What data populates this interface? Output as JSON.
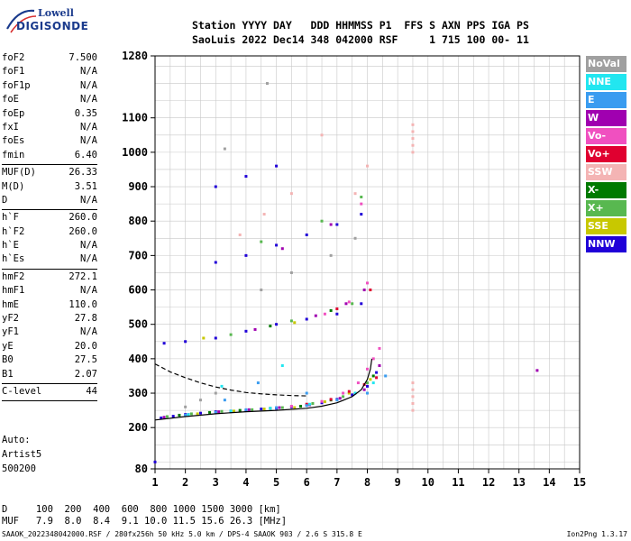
{
  "logo": {
    "line1": "Lowell",
    "line2": "DIGISONDE"
  },
  "header": {
    "line1": "Station YYYY DAY   DDD HHMMSS P1  FFS S AXN PPS IGA PS",
    "line2": "SaoLuis 2022 Dec14 348 042000 RSF     1 715 100 00- 11"
  },
  "params_groups": [
    [
      {
        "k": "foF2",
        "v": "7.500"
      },
      {
        "k": "foF1",
        "v": "N/A"
      },
      {
        "k": "foF1p",
        "v": "N/A"
      },
      {
        "k": "foE",
        "v": "N/A"
      },
      {
        "k": "foEp",
        "v": "0.35"
      },
      {
        "k": "fxI",
        "v": "N/A"
      },
      {
        "k": "foEs",
        "v": "N/A"
      },
      {
        "k": "fmin",
        "v": "6.40"
      }
    ],
    [
      {
        "k": "MUF(D)",
        "v": "26.33"
      },
      {
        "k": "M(D)",
        "v": "3.51"
      },
      {
        "k": "D",
        "v": "N/A"
      }
    ],
    [
      {
        "k": "h`F",
        "v": "260.0"
      },
      {
        "k": "h`F2",
        "v": "260.0"
      },
      {
        "k": "h`E",
        "v": "N/A"
      },
      {
        "k": "h`Es",
        "v": "N/A"
      }
    ],
    [
      {
        "k": "hmF2",
        "v": "272.1"
      },
      {
        "k": "hmF1",
        "v": "N/A"
      },
      {
        "k": "hmE",
        "v": "110.0"
      },
      {
        "k": "yF2",
        "v": "27.8"
      },
      {
        "k": "yF1",
        "v": "N/A"
      },
      {
        "k": "yE",
        "v": "20.0"
      },
      {
        "k": "B0",
        "v": "27.5"
      },
      {
        "k": "B1",
        "v": "2.07"
      }
    ],
    [
      {
        "k": "C-level",
        "v": "44"
      }
    ]
  ],
  "auto": {
    "line1": "Auto:",
    "line2": "Artist5",
    "line3": "500200"
  },
  "legend": [
    {
      "label": "NoVal",
      "color": "#a0a0a0"
    },
    {
      "label": "NNE",
      "color": "#22e6f0"
    },
    {
      "label": "E",
      "color": "#3a9cf0"
    },
    {
      "label": "W",
      "color": "#a000b0"
    },
    {
      "label": "Vo-",
      "color": "#f050c0"
    },
    {
      "label": "Vo+",
      "color": "#e00030"
    },
    {
      "label": "SSW",
      "color": "#f4b4b4"
    },
    {
      "label": "X-",
      "color": "#007a00"
    },
    {
      "label": "X+",
      "color": "#58b850"
    },
    {
      "label": "SSE",
      "color": "#c8c800"
    },
    {
      "label": "NNW",
      "color": "#2000d8"
    }
  ],
  "muf_table": {
    "line1": "D     100  200  400  600  800 1000 1500 3000 [km]",
    "line2": "MUF   7.9  8.0  8.4  9.1 10.0 11.5 15.6 26.3 [MHz]"
  },
  "footer": {
    "left": "SAAOK_2022348042000.RSF / 280fx256h 50 kHz 5.0 km / DPS-4 SAAOK 903 / 2.6 S 315.8 E",
    "right": "Ion2Png 1.3.17"
  },
  "chart_data": {
    "type": "scatter",
    "xlim": [
      1,
      15
    ],
    "ylim": [
      80,
      1280
    ],
    "x_ticks": [
      1,
      2,
      3,
      4,
      5,
      6,
      7,
      8,
      9,
      10,
      11,
      12,
      13,
      14,
      15
    ],
    "y_ticks": [
      80,
      200,
      300,
      400,
      500,
      600,
      700,
      800,
      900,
      1000,
      1100,
      1280
    ],
    "grid": true,
    "series": [
      {
        "name": "NNW",
        "color": "#2000d8",
        "x": [
          1.2,
          1.6,
          2.0,
          2.5,
          3.0,
          3.5,
          4.0,
          4.5,
          5.0,
          5.5,
          6.0,
          6.5,
          7.0,
          7.5,
          8.0,
          8.3,
          1.3,
          2.0,
          3.0,
          4.0,
          5.0,
          6.0,
          7.0,
          7.8,
          3.0,
          4.0,
          5.0,
          6.0,
          7.0,
          7.8,
          3.0,
          4.0,
          5.0,
          1.0
        ],
        "y": [
          228,
          233,
          238,
          242,
          246,
          248,
          250,
          254,
          256,
          260,
          265,
          272,
          282,
          295,
          320,
          360,
          445,
          450,
          460,
          480,
          500,
          515,
          530,
          560,
          680,
          700,
          730,
          760,
          790,
          820,
          900,
          930,
          960,
          100
        ]
      },
      {
        "name": "X+",
        "color": "#58b850",
        "x": [
          1.4,
          2.2,
          3.2,
          4.2,
          5.2,
          6.2,
          7.2,
          8.0,
          3.5,
          5.5,
          7.5,
          4.5,
          6.5,
          7.8
        ],
        "y": [
          232,
          240,
          247,
          252,
          258,
          270,
          290,
          330,
          470,
          510,
          560,
          740,
          800,
          870
        ]
      },
      {
        "name": "X-",
        "color": "#007a00",
        "x": [
          1.8,
          2.8,
          3.8,
          4.8,
          5.8,
          6.8,
          7.6,
          8.2,
          4.8,
          6.8
        ],
        "y": [
          236,
          244,
          250,
          256,
          262,
          280,
          300,
          350,
          495,
          540
        ]
      },
      {
        "name": "SSE",
        "color": "#c8c800",
        "x": [
          2.4,
          3.6,
          4.6,
          5.6,
          6.6,
          7.4,
          8.1,
          2.6,
          5.6
        ],
        "y": [
          240,
          248,
          254,
          258,
          275,
          300,
          340,
          460,
          505
        ]
      },
      {
        "name": "W",
        "color": "#a000b0",
        "x": [
          1.3,
          2.1,
          3.1,
          4.1,
          5.1,
          6.1,
          7.1,
          7.9,
          8.4,
          4.3,
          6.3,
          7.3,
          7.9,
          5.2,
          6.8,
          13.6
        ],
        "y": [
          230,
          238,
          246,
          252,
          258,
          266,
          285,
          310,
          380,
          485,
          525,
          560,
          600,
          720,
          790,
          366
        ]
      },
      {
        "name": "Vo-",
        "color": "#f050c0",
        "x": [
          5.5,
          6.5,
          7.2,
          7.7,
          8.0,
          8.2,
          8.4,
          6.6,
          7.4,
          8.0,
          7.8
        ],
        "y": [
          262,
          276,
          300,
          330,
          370,
          400,
          430,
          530,
          565,
          620,
          850
        ]
      },
      {
        "name": "Vo+",
        "color": "#e00030",
        "x": [
          6.0,
          6.8,
          7.4,
          7.9,
          8.3,
          7.0,
          8.1
        ],
        "y": [
          268,
          282,
          305,
          325,
          345,
          545,
          600
        ]
      },
      {
        "name": "E",
        "color": "#3a9cf0",
        "x": [
          2.0,
          3.0,
          4.0,
          5.0,
          6.0,
          7.0,
          8.0,
          8.6,
          3.3,
          4.4,
          6.0
        ],
        "y": [
          236,
          244,
          252,
          258,
          264,
          280,
          300,
          350,
          280,
          330,
          300
        ]
      },
      {
        "name": "NNE",
        "color": "#22e6f0",
        "x": [
          2.1,
          3.5,
          4.8,
          6.1,
          7.6,
          8.2,
          3.2,
          5.2
        ],
        "y": [
          238,
          248,
          256,
          268,
          300,
          330,
          320,
          380
        ]
      },
      {
        "name": "SSW",
        "color": "#f4b4b4",
        "x": [
          9.5,
          9.5,
          9.5,
          9.5,
          9.5,
          9.5,
          9.5,
          9.5,
          9.5,
          9.5,
          3.8,
          4.6,
          5.5,
          6.5,
          7.6,
          8.0
        ],
        "y": [
          250,
          270,
          290,
          310,
          330,
          1000,
          1020,
          1040,
          1060,
          1080,
          760,
          820,
          880,
          1050,
          880,
          960
        ]
      },
      {
        "name": "NoVal",
        "color": "#a0a0a0",
        "x": [
          2.0,
          2.5,
          3.0,
          4.5,
          5.5,
          6.8,
          7.6,
          3.3,
          4.7
        ],
        "y": [
          260,
          280,
          300,
          600,
          650,
          700,
          750,
          1010,
          1200
        ]
      }
    ],
    "curves": [
      {
        "style": "dashed",
        "x": [
          1.0,
          1.5,
          2.0,
          2.5,
          3.0,
          3.5,
          4.0,
          4.5,
          5.0,
          5.5,
          6.0
        ],
        "y": [
          385,
          362,
          345,
          330,
          318,
          309,
          302,
          298,
          295,
          293,
          292
        ]
      },
      {
        "style": "solid",
        "x": [
          1.0,
          2.0,
          3.0,
          4.0,
          5.0,
          6.0,
          6.5,
          7.0,
          7.5,
          7.8,
          8.0,
          8.1,
          8.15
        ],
        "y": [
          222,
          232,
          240,
          246,
          250,
          256,
          262,
          272,
          290,
          310,
          340,
          370,
          400
        ]
      }
    ]
  }
}
